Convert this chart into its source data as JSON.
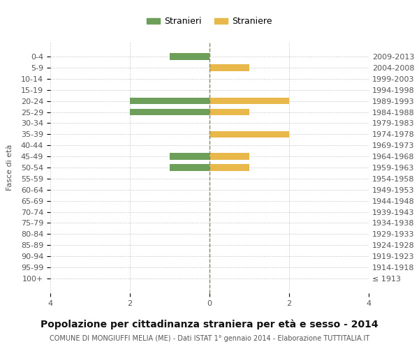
{
  "age_groups": [
    "100+",
    "95-99",
    "90-94",
    "85-89",
    "80-84",
    "75-79",
    "70-74",
    "65-69",
    "60-64",
    "55-59",
    "50-54",
    "45-49",
    "40-44",
    "35-39",
    "30-34",
    "25-29",
    "20-24",
    "15-19",
    "10-14",
    "5-9",
    "0-4"
  ],
  "birth_years": [
    "≤ 1913",
    "1914-1918",
    "1919-1923",
    "1924-1928",
    "1929-1933",
    "1934-1938",
    "1939-1943",
    "1944-1948",
    "1949-1953",
    "1954-1958",
    "1959-1963",
    "1964-1968",
    "1969-1973",
    "1974-1978",
    "1979-1983",
    "1984-1988",
    "1989-1993",
    "1994-1998",
    "1999-2003",
    "2004-2008",
    "2009-2013"
  ],
  "males": [
    0,
    0,
    0,
    0,
    0,
    0,
    0,
    0,
    0,
    0,
    -1,
    -1,
    0,
    0,
    0,
    -2,
    -2,
    0,
    0,
    0,
    -1
  ],
  "females": [
    0,
    0,
    0,
    0,
    0,
    0,
    0,
    0,
    0,
    0,
    1,
    1,
    0,
    2,
    0,
    1,
    2,
    0,
    0,
    1,
    0
  ],
  "male_color": "#6d9e5a",
  "female_color": "#e8b84b",
  "background_color": "#ffffff",
  "grid_color": "#cccccc",
  "title": "Popolazione per cittadinanza straniera per età e sesso - 2014",
  "subtitle": "COMUNE DI MONGIUFFI MELIA (ME) - Dati ISTAT 1° gennaio 2014 - Elaborazione TUTTITALIA.IT",
  "ylabel_left": "Fasce di età",
  "legend_male": "Stranieri",
  "legend_female": "Straniere",
  "xlim": 4,
  "figsize": [
    6.0,
    5.0
  ],
  "dpi": 100
}
